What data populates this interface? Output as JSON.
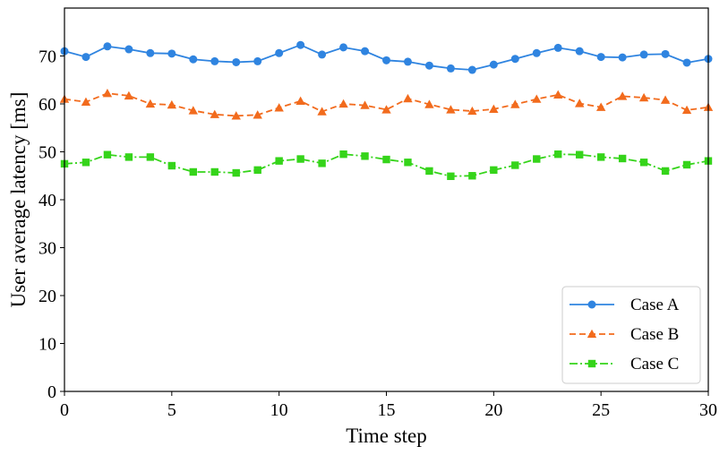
{
  "chart_data": {
    "type": "line",
    "title": "",
    "xlabel": "Time step",
    "ylabel": "User average latency [ms]",
    "xlim": [
      0,
      30
    ],
    "ylim": [
      0,
      80
    ],
    "xticks": [
      0,
      5,
      10,
      15,
      20,
      25,
      30
    ],
    "yticks": [
      0,
      10,
      20,
      30,
      40,
      50,
      60,
      70
    ],
    "grid": false,
    "legend_position": "lower-right",
    "x": [
      0,
      1,
      2,
      3,
      4,
      5,
      6,
      7,
      8,
      9,
      10,
      11,
      12,
      13,
      14,
      15,
      16,
      17,
      18,
      19,
      20,
      21,
      22,
      23,
      24,
      25,
      26,
      27,
      28,
      29,
      30
    ],
    "series": [
      {
        "name": "Case A",
        "color": "#2f84e0",
        "marker": "circle",
        "line_style": "solid",
        "values": [
          71.0,
          69.8,
          72.0,
          71.4,
          70.6,
          70.5,
          69.3,
          68.9,
          68.7,
          68.9,
          70.6,
          72.3,
          70.3,
          71.8,
          71.0,
          69.1,
          68.8,
          68.0,
          67.4,
          67.1,
          68.2,
          69.4,
          70.6,
          71.7,
          71.0,
          69.8,
          69.7,
          70.3,
          70.4,
          68.6,
          69.4
        ]
      },
      {
        "name": "Case B",
        "color": "#f26b1d",
        "marker": "triangle",
        "line_style": "dashed",
        "values": [
          61.0,
          60.4,
          62.2,
          61.7,
          60.0,
          59.8,
          58.6,
          57.8,
          57.5,
          57.7,
          59.2,
          60.6,
          58.4,
          60.0,
          59.7,
          58.8,
          61.1,
          59.9,
          58.8,
          58.5,
          58.9,
          59.9,
          61.0,
          61.9,
          60.1,
          59.3,
          61.6,
          61.3,
          60.8,
          58.7,
          59.3
        ]
      },
      {
        "name": "Case C",
        "color": "#35d41a",
        "marker": "square",
        "line_style": "dashdot",
        "values": [
          47.5,
          47.8,
          49.4,
          48.9,
          48.9,
          47.1,
          45.8,
          45.8,
          45.6,
          46.2,
          48.1,
          48.5,
          47.6,
          49.5,
          49.1,
          48.4,
          47.8,
          46.0,
          44.9,
          45.0,
          46.2,
          47.2,
          48.5,
          49.5,
          49.4,
          48.9,
          48.6,
          47.8,
          46.0,
          47.3,
          48.1
        ]
      }
    ]
  }
}
